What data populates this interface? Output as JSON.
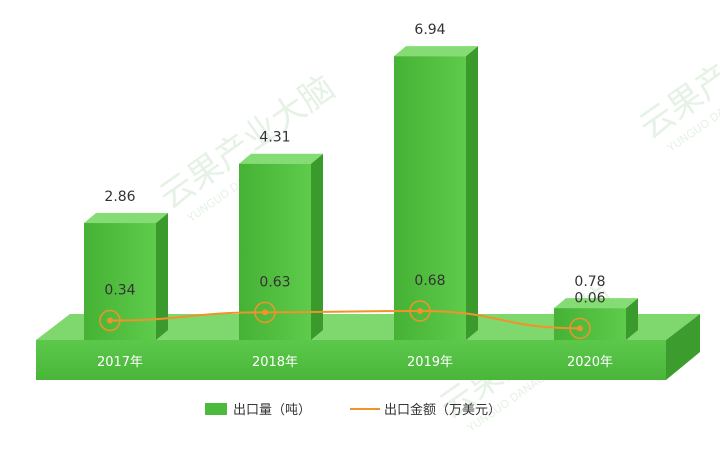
{
  "watermark": {
    "cn": "云果产业大脑",
    "en": "YUNGUO DANAO"
  },
  "chart_data": {
    "type": "bar",
    "title": "",
    "categories": [
      "2017年",
      "2018年",
      "2019年",
      "2020年"
    ],
    "series": [
      {
        "name": "出口量（吨）",
        "type": "bar",
        "values": [
          2.86,
          4.31,
          6.94,
          0.78
        ],
        "color": "#4cbb3d"
      },
      {
        "name": "出口金额（万美元）",
        "type": "line",
        "values": [
          0.34,
          0.63,
          0.68,
          0.06
        ],
        "color": "#f0932b"
      }
    ],
    "legend_position": "bottom",
    "grid": false
  }
}
